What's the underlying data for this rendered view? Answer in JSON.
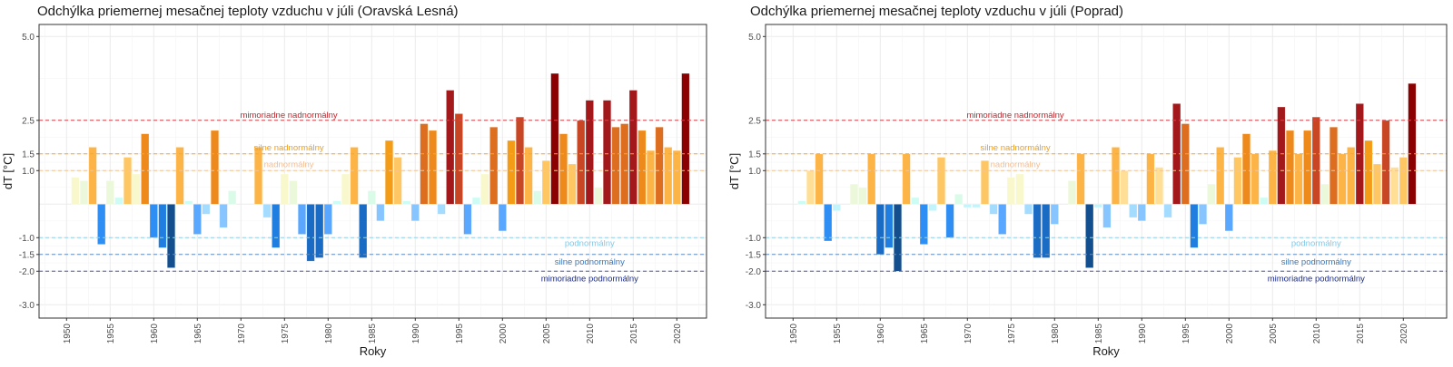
{
  "chart_data": [
    {
      "type": "bar",
      "title": "Odchýlka priemernej mesačnej teploty vzduchu v júli (Oravská Lesná)",
      "xlabel": "Roky",
      "ylabel": "dT [°C]",
      "ylim": [
        -3.5,
        5.3
      ],
      "xlim": [
        1947,
        2025
      ],
      "yticks": [
        5.0,
        2.5,
        1.5,
        1.0,
        -1.0,
        -1.5,
        -2.0,
        -3.0
      ],
      "ytick_labels": [
        "5.0",
        "2.5",
        "1.5",
        "1.0",
        "-1.0",
        "-1.5",
        "-2.0",
        "-3.0"
      ],
      "xticks": [
        1950,
        1955,
        1960,
        1965,
        1970,
        1975,
        1980,
        1985,
        1990,
        1995,
        2000,
        2005,
        2010,
        2015,
        2020
      ],
      "grid": true,
      "x": [
        1951,
        1952,
        1953,
        1954,
        1955,
        1956,
        1957,
        1958,
        1959,
        1960,
        1961,
        1962,
        1963,
        1964,
        1965,
        1966,
        1967,
        1968,
        1969,
        1972,
        1973,
        1974,
        1975,
        1976,
        1977,
        1978,
        1979,
        1980,
        1981,
        1982,
        1983,
        1984,
        1985,
        1986,
        1987,
        1988,
        1989,
        1990,
        1991,
        1992,
        1993,
        1994,
        1995,
        1996,
        1997,
        1998,
        1999,
        2000,
        2001,
        2002,
        2003,
        2004,
        2005,
        2006,
        2007,
        2008,
        2009,
        2010,
        2011,
        2012,
        2013,
        2014,
        2015,
        2016,
        2017,
        2018,
        2019,
        2020,
        2021
      ],
      "values": [
        0.8,
        0.7,
        1.7,
        -1.2,
        0.7,
        0.2,
        1.4,
        0.9,
        2.1,
        -1.0,
        -1.3,
        -1.9,
        1.7,
        0.1,
        -0.9,
        -0.3,
        2.2,
        -0.7,
        0.4,
        1.7,
        -0.4,
        -1.3,
        0.9,
        0.7,
        -0.9,
        -1.7,
        -1.6,
        -0.9,
        0.1,
        0.9,
        1.7,
        -1.6,
        0.4,
        -0.5,
        1.9,
        1.4,
        0.1,
        -0.5,
        2.4,
        2.2,
        -0.3,
        3.4,
        2.7,
        -0.9,
        0.2,
        0.9,
        2.3,
        -0.8,
        1.9,
        2.6,
        1.7,
        0.4,
        1.3,
        3.9,
        2.1,
        1.2,
        2.5,
        3.1,
        0.5,
        3.1,
        2.3,
        2.4,
        3.4,
        2.2,
        1.6,
        2.3,
        1.7,
        1.6,
        3.9
      ]
    },
    {
      "type": "bar",
      "title": "Odchýlka priemernej mesačnej teploty vzduchu v júli (Poprad)",
      "xlabel": "Roky",
      "ylabel": "dT [°C]",
      "ylim": [
        -3.5,
        5.3
      ],
      "xlim": [
        1947,
        2025
      ],
      "yticks": [
        5.0,
        2.5,
        1.5,
        1.0,
        -1.0,
        -1.5,
        -2.0,
        -3.0
      ],
      "ytick_labels": [
        "5.0",
        "2.5",
        "1.5",
        "1.0",
        "-1.0",
        "-1.5",
        "-2.0",
        "-3.0"
      ],
      "xticks": [
        1950,
        1955,
        1960,
        1965,
        1970,
        1975,
        1980,
        1985,
        1990,
        1995,
        2000,
        2005,
        2010,
        2015,
        2020
      ],
      "grid": true,
      "x": [
        1951,
        1952,
        1953,
        1954,
        1955,
        1957,
        1958,
        1959,
        1960,
        1961,
        1962,
        1963,
        1964,
        1965,
        1966,
        1967,
        1968,
        1969,
        1970,
        1971,
        1972,
        1973,
        1974,
        1975,
        1976,
        1977,
        1978,
        1979,
        1980,
        1982,
        1983,
        1984,
        1985,
        1986,
        1987,
        1988,
        1989,
        1990,
        1991,
        1992,
        1993,
        1994,
        1995,
        1996,
        1997,
        1998,
        1999,
        2000,
        2001,
        2002,
        2003,
        2004,
        2005,
        2006,
        2007,
        2008,
        2009,
        2010,
        2011,
        2012,
        2013,
        2014,
        2015,
        2016,
        2017,
        2018,
        2019,
        2020,
        2021
      ],
      "values": [
        0.1,
        1.0,
        1.5,
        -1.1,
        -0.2,
        0.6,
        0.5,
        1.5,
        -1.5,
        -1.3,
        -2.0,
        1.5,
        0.2,
        -1.2,
        -0.2,
        1.4,
        -1.0,
        0.3,
        -0.1,
        -0.1,
        1.3,
        -0.3,
        -0.9,
        0.8,
        0.9,
        -0.3,
        -1.6,
        -1.6,
        -0.6,
        0.7,
        1.5,
        -1.9,
        -0.1,
        -0.7,
        1.7,
        1.0,
        -0.4,
        -0.5,
        1.5,
        1.1,
        -0.4,
        3.0,
        2.4,
        -1.3,
        -0.6,
        0.6,
        1.7,
        -0.8,
        1.4,
        2.1,
        1.5,
        0.2,
        1.6,
        2.9,
        2.2,
        1.5,
        2.2,
        2.6,
        0.6,
        2.3,
        1.5,
        1.7,
        3.0,
        1.9,
        1.2,
        2.5,
        1.1,
        1.4,
        3.6
      ]
    }
  ],
  "thresholds": [
    {
      "value": 2.5,
      "label": "mimoriadne nadnormálny",
      "color": "#d9434b",
      "label_color": "#c1272d"
    },
    {
      "value": 1.5,
      "label": "silne nadnormálny",
      "color": "#f8a825",
      "label_color": "#f39c12"
    },
    {
      "value": 1.0,
      "label": "nadnormálny",
      "color": "#f7c48e",
      "label_color": "#f2be93"
    },
    {
      "value": -1.0,
      "label": "podnormálny",
      "color": "#8ed4f0",
      "label_color": "#7fcbea"
    },
    {
      "value": -1.5,
      "label": "silne podnormálny",
      "color": "#5f8fc4",
      "label_color": "#3f78b8"
    },
    {
      "value": -2.0,
      "label": "mimoriadne podnormálny",
      "color": "#4a55a0",
      "label_color": "#1d2d8a"
    }
  ]
}
